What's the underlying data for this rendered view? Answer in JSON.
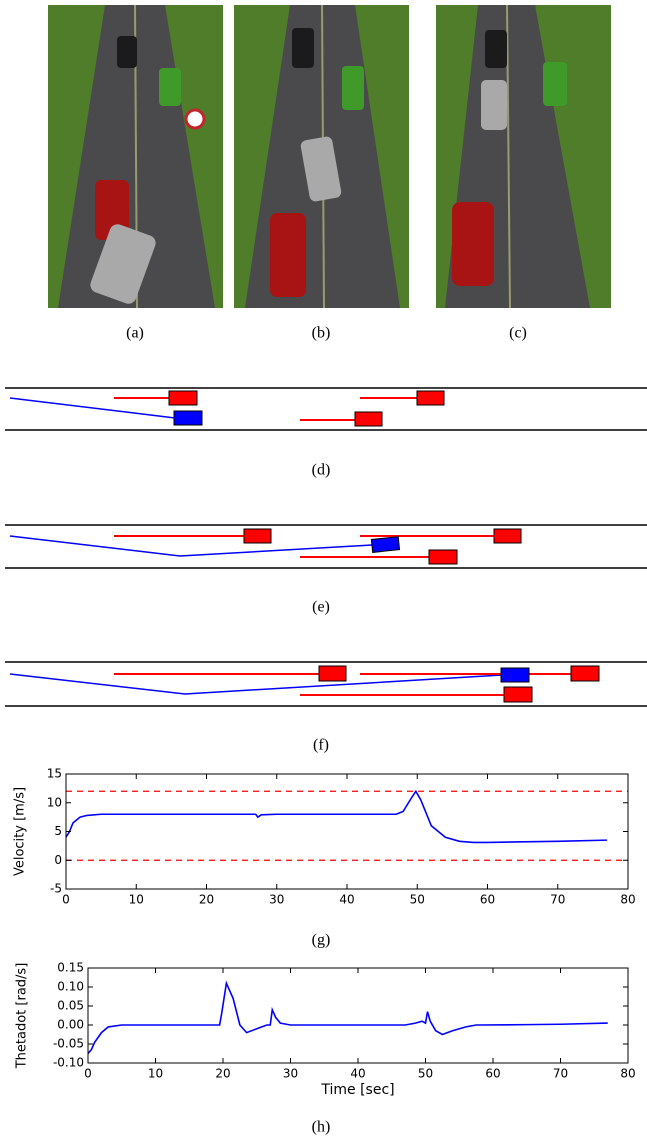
{
  "captions": [
    "(a)",
    "(b)",
    "(c)",
    "(d)",
    "(e)",
    "(f)"
  ],
  "chart_data": [
    {
      "type": "line",
      "caption": "(g)",
      "y_label": "Velocity [m/s]",
      "xlim": [
        0,
        80
      ],
      "xticks": [
        0,
        10,
        20,
        30,
        40,
        50,
        60,
        70,
        80
      ],
      "ylim": [
        -5,
        15
      ],
      "yticks": [
        -5,
        0,
        5,
        10,
        15
      ],
      "hlines": [
        {
          "value": 12,
          "color": "#ff0000"
        },
        {
          "value": 0,
          "color": "#ff0000"
        }
      ],
      "x": [
        0,
        0.5,
        1,
        2,
        3,
        5,
        10,
        20,
        27,
        27.3,
        27.8,
        30,
        40,
        47,
        48,
        49,
        49.8,
        50.5,
        52,
        54,
        56,
        58,
        60,
        65,
        70,
        77
      ],
      "series": [
        {
          "color": "#0000ff",
          "values": [
            4,
            5,
            6.5,
            7.5,
            7.8,
            8,
            8,
            8,
            8,
            7.5,
            7.9,
            8,
            8,
            8,
            8.5,
            10.5,
            12,
            10.5,
            6,
            4,
            3.3,
            3.1,
            3.1,
            3.2,
            3.3,
            3.5
          ]
        }
      ]
    },
    {
      "type": "line",
      "caption": "(h)",
      "y_label": "Thetadot [rad/s]",
      "x_label": "Time [sec]",
      "xlim": [
        0,
        80
      ],
      "xticks": [
        0,
        10,
        20,
        30,
        40,
        50,
        60,
        70,
        80
      ],
      "ylim": [
        -0.1,
        0.15
      ],
      "yticks": [
        {
          "value": -0.1,
          "label": "-0.10"
        },
        {
          "value": -0.05,
          "label": "-0.05"
        },
        {
          "value": 0,
          "label": "0.00"
        },
        {
          "value": 0.05,
          "label": "0.05"
        },
        {
          "value": 0.1,
          "label": "0.10"
        },
        {
          "value": 0.15,
          "label": "0.15"
        }
      ],
      "x": [
        0,
        0.5,
        1,
        2,
        3,
        5,
        10,
        19.5,
        19.8,
        20.5,
        21.5,
        22.5,
        23.5,
        25,
        26.5,
        27,
        27.3,
        27.8,
        28.5,
        30,
        40,
        47,
        48.5,
        49.5,
        50,
        50.3,
        50.7,
        51.5,
        52.5,
        54,
        56,
        57.5,
        58,
        65,
        70,
        77
      ],
      "series": [
        {
          "color": "#0000ff",
          "values": [
            -0.075,
            -0.065,
            -0.045,
            -0.02,
            -0.005,
            0,
            0,
            0,
            0.03,
            0.11,
            0.07,
            0,
            -0.02,
            -0.01,
            0,
            0,
            0.04,
            0.02,
            0.005,
            0,
            0,
            0,
            0.005,
            0.01,
            0.005,
            0.035,
            0.01,
            -0.015,
            -0.025,
            -0.015,
            -0.005,
            0,
            0,
            0.001,
            0.002,
            0.005
          ]
        }
      ]
    }
  ]
}
